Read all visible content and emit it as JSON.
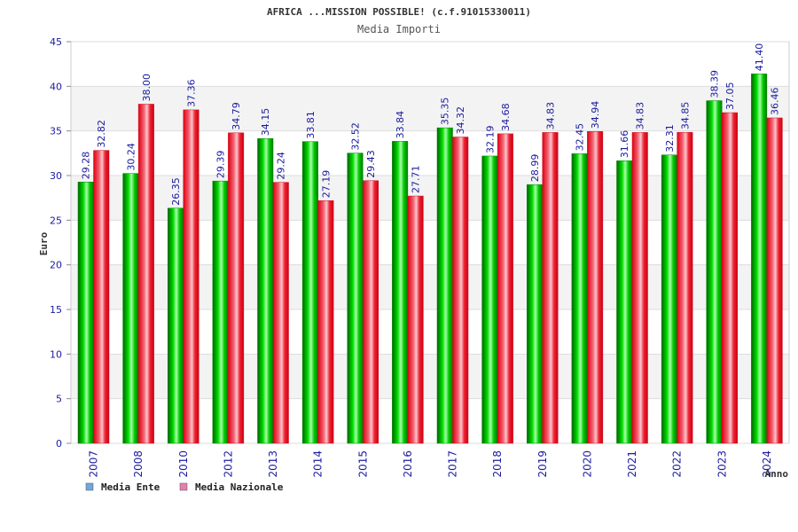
{
  "chart_data": {
    "type": "bar",
    "title": "AFRICA ...MISSION POSSIBLE! (c.f.91015330011)",
    "subtitle": "Media Importi",
    "xlabel": "Anno",
    "ylabel": "Euro",
    "ylim": [
      0,
      45
    ],
    "yticks": [
      "0",
      "5",
      "10",
      "15",
      "20",
      "25",
      "30",
      "35",
      "40",
      "45"
    ],
    "grid": true,
    "legend_position": "bottom-left",
    "categories": [
      "2007",
      "2008",
      "2010",
      "2012",
      "2013",
      "2014",
      "2015",
      "2016",
      "2017",
      "2018",
      "2019",
      "2020",
      "2021",
      "2022",
      "2023",
      "2024"
    ],
    "series": [
      {
        "name": "Media Ente",
        "color": "#00cc00",
        "legend_color": "#6fa8dc",
        "values": [
          29.28,
          30.24,
          26.35,
          29.39,
          34.15,
          33.81,
          32.52,
          33.84,
          35.35,
          32.19,
          28.99,
          32.45,
          31.66,
          32.31,
          38.39,
          41.4
        ],
        "labels": [
          "29.28",
          "30.24",
          "26.35",
          "29.39",
          "34.15",
          "33.81",
          "32.52",
          "33.84",
          "35.35",
          "32.19",
          "28.99",
          "32.45",
          "31.66",
          "32.31",
          "38.39",
          "41.40"
        ]
      },
      {
        "name": "Media Nazionale",
        "color": "#ee1122",
        "legend_color": "#e57fb0",
        "values": [
          32.82,
          38.0,
          37.36,
          34.79,
          29.24,
          27.19,
          29.43,
          27.71,
          34.32,
          34.68,
          34.83,
          34.94,
          34.83,
          34.85,
          37.05,
          36.46
        ],
        "labels": [
          "32.82",
          "38.00",
          "37.36",
          "34.79",
          "29.24",
          "27.19",
          "29.43",
          "27.71",
          "34.32",
          "34.68",
          "34.83",
          "34.94",
          "34.83",
          "34.85",
          "37.05",
          "36.46"
        ]
      }
    ]
  }
}
